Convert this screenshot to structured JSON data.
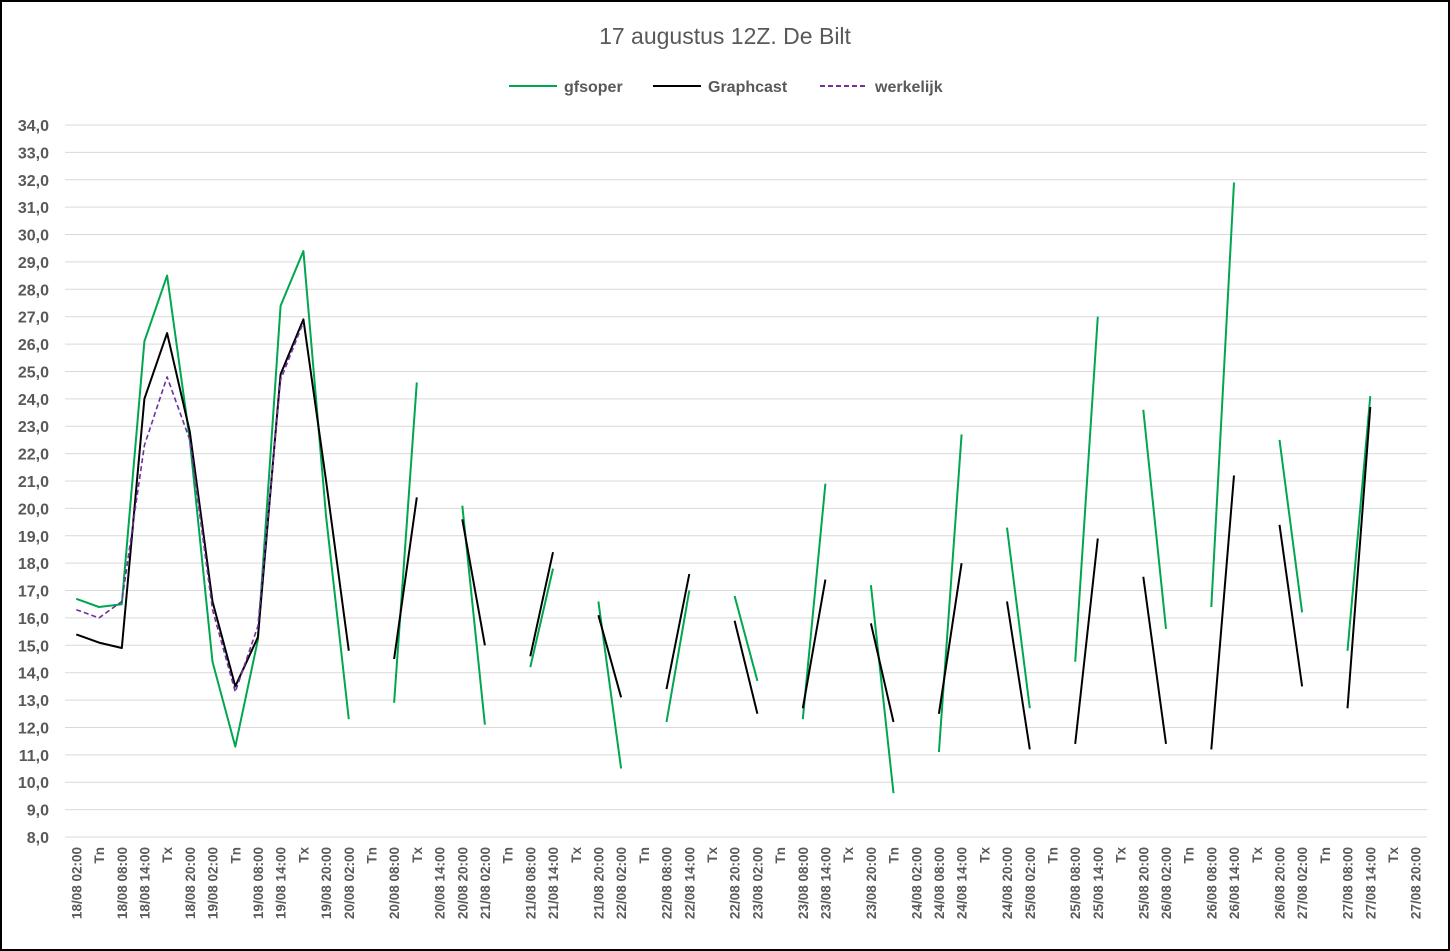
{
  "chart_data": {
    "type": "line",
    "title": "17 augustus 12Z. De Bilt",
    "xlabel": "",
    "ylabel": "",
    "ylim": [
      8,
      34
    ],
    "ystep": 1,
    "grid": true,
    "legend_position": "top",
    "categories": [
      "18/08 02:00",
      "Tn",
      "18/08 08:00",
      "18/08 14:00",
      "Tx",
      "18/08 20:00",
      "19/08 02:00",
      "Tn",
      "19/08 08:00",
      "19/08 14:00",
      "Tx",
      "19/08 20:00",
      "20/08 02:00",
      "Tn",
      "20/08 08:00",
      "Tx",
      "20/08 14:00",
      "20/08 20:00",
      "21/08 02:00",
      "Tn",
      "21/08 08:00",
      "21/08 14:00",
      "Tx",
      "21/08 20:00",
      "22/08 02:00",
      "Tn",
      "22/08 08:00",
      "22/08 14:00",
      "Tx",
      "22/08 20:00",
      "23/08 02:00",
      "Tn",
      "23/08 08:00",
      "23/08 14:00",
      "Tx",
      "23/08 20:00",
      "Tn",
      "24/08 02:00",
      "24/08 08:00",
      "24/08 14:00",
      "Tx",
      "24/08 20:00",
      "25/08 02:00",
      "Tn",
      "25/08 08:00",
      "25/08 14:00",
      "Tx",
      "25/08 20:00",
      "26/08 02:00",
      "Tn",
      "26/08 08:00",
      "26/08 14:00",
      "Tx",
      "26/08 20:00",
      "27/08 02:00",
      "Tn",
      "27/08 08:00",
      "27/08 14:00",
      "Tx",
      "27/08 20:00"
    ],
    "series": [
      {
        "name": "gfsoper",
        "color": "#00a650",
        "dash": false,
        "values": [
          16.7,
          16.4,
          16.5,
          26.1,
          28.5,
          22.5,
          14.4,
          11.3,
          15.2,
          27.4,
          29.4,
          19.7,
          12.3,
          null,
          12.9,
          24.6,
          null,
          20.1,
          12.1,
          null,
          14.2,
          17.8,
          null,
          16.6,
          10.5,
          null,
          12.2,
          17.0,
          null,
          16.8,
          13.7,
          null,
          12.3,
          20.9,
          null,
          17.2,
          9.6,
          null,
          11.1,
          22.7,
          null,
          19.3,
          12.7,
          null,
          14.4,
          27.0,
          null,
          23.6,
          15.6,
          null,
          16.4,
          31.9,
          null,
          22.5,
          16.2,
          null,
          14.8,
          24.1,
          null,
          null
        ]
      },
      {
        "name": "Graphcast",
        "color": "#000000",
        "dash": false,
        "values": [
          15.4,
          15.1,
          14.9,
          24.0,
          26.4,
          22.8,
          16.6,
          13.5,
          15.3,
          24.9,
          26.9,
          21.0,
          14.8,
          null,
          14.5,
          20.4,
          null,
          19.6,
          15.0,
          null,
          14.6,
          18.4,
          null,
          16.1,
          13.1,
          null,
          13.4,
          17.6,
          null,
          15.9,
          12.5,
          null,
          12.7,
          17.4,
          null,
          15.8,
          12.2,
          null,
          12.5,
          18.0,
          null,
          16.6,
          11.2,
          null,
          11.4,
          18.9,
          null,
          17.5,
          11.4,
          null,
          11.2,
          21.2,
          null,
          19.4,
          13.5,
          null,
          12.7,
          23.7,
          null,
          null
        ]
      },
      {
        "name": "werkelijk",
        "color": "#7030a0",
        "dash": true,
        "values": [
          16.3,
          16.0,
          16.6,
          22.3,
          24.8,
          22.5,
          16.3,
          13.3,
          15.7,
          24.7,
          26.8,
          null,
          null,
          null,
          null,
          null,
          null,
          null,
          null,
          null,
          null,
          null,
          null,
          null,
          null,
          null,
          null,
          null,
          null,
          null,
          null,
          null,
          null,
          null,
          null,
          null,
          null,
          null,
          null,
          null,
          null,
          null,
          null,
          null,
          null,
          null,
          null,
          null,
          null,
          null,
          null,
          null,
          null,
          null,
          null,
          null,
          null,
          null,
          null,
          null
        ]
      }
    ]
  }
}
